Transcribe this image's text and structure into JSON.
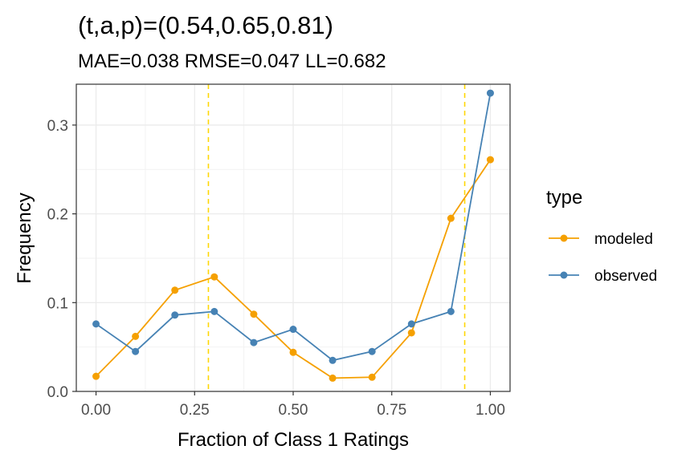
{
  "chart_data": {
    "type": "line",
    "title": "(t,a,p)=(0.54,0.65,0.81)",
    "subtitle": "MAE=0.038  RMSE=0.047  LL=0.682",
    "xlabel": "Fraction of Class 1 Ratings",
    "ylabel": "Frequency",
    "xlim": [
      -0.05,
      1.05
    ],
    "ylim": [
      0,
      0.346
    ],
    "x_ticks": [
      0.0,
      0.25,
      0.5,
      0.75,
      1.0
    ],
    "x_tick_labels": [
      "0.00",
      "0.25",
      "0.50",
      "0.75",
      "1.00"
    ],
    "y_ticks": [
      0.0,
      0.1,
      0.2,
      0.3
    ],
    "y_tick_labels": [
      "0.0",
      "0.1",
      "0.2",
      "0.3"
    ],
    "grid": true,
    "x": [
      0.0,
      0.1,
      0.2,
      0.3,
      0.4,
      0.5,
      0.6,
      0.7,
      0.8,
      0.9,
      1.0
    ],
    "series": [
      {
        "name": "modeled",
        "color": "#F5A000",
        "values": [
          0.017,
          0.062,
          0.114,
          0.129,
          0.087,
          0.044,
          0.015,
          0.016,
          0.066,
          0.195,
          0.261
        ]
      },
      {
        "name": "observed",
        "color": "#4682B4",
        "values": [
          0.076,
          0.045,
          0.086,
          0.09,
          0.055,
          0.07,
          0.035,
          0.045,
          0.076,
          0.09,
          0.336
        ]
      }
    ],
    "vlines": [
      {
        "x": 0.285,
        "color": "#FFD700",
        "style": "dashed"
      },
      {
        "x": 0.935,
        "color": "#FFD700",
        "style": "dashed"
      }
    ],
    "legend": {
      "title": "type",
      "position": "right"
    }
  }
}
